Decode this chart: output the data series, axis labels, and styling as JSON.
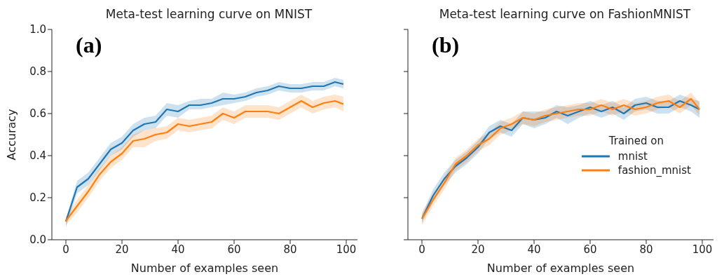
{
  "chart_data": [
    {
      "type": "line",
      "title": "Meta-test learning curve on MNIST",
      "xlabel": "Number of examples seen",
      "ylabel": "Accuracy",
      "annotations": [
        "(a)"
      ],
      "legend": false,
      "marker": "none",
      "line_style": "solid",
      "grid": false,
      "x": [
        0,
        4,
        8,
        12,
        16,
        20,
        24,
        28,
        32,
        36,
        40,
        44,
        48,
        52,
        56,
        60,
        64,
        68,
        72,
        76,
        80,
        84,
        88,
        92,
        96,
        99
      ],
      "xlim": [
        -5,
        104
      ],
      "xticks": [
        0,
        20,
        40,
        60,
        80,
        100
      ],
      "ylim": [
        0,
        1
      ],
      "yticks": [
        {
          "value": 0,
          "label": "0.0"
        },
        {
          "value": 0.2,
          "label": "0.2"
        },
        {
          "value": 0.4,
          "label": "0.4"
        },
        {
          "value": 0.6,
          "label": "0.6"
        },
        {
          "value": 0.8,
          "label": "0.8"
        },
        {
          "value": 1,
          "label": "1.0"
        }
      ],
      "series": [
        {
          "color": "#1f77b4",
          "values": [
            0.087,
            0.25,
            0.29,
            0.36,
            0.43,
            0.46,
            0.52,
            0.55,
            0.56,
            0.62,
            0.61,
            0.64,
            0.64,
            0.65,
            0.67,
            0.67,
            0.68,
            0.7,
            0.71,
            0.73,
            0.72,
            0.72,
            0.73,
            0.73,
            0.75,
            0.74
          ],
          "lower": [
            0.06,
            0.22,
            0.26,
            0.33,
            0.4,
            0.43,
            0.49,
            0.52,
            0.53,
            0.59,
            0.58,
            0.62,
            0.62,
            0.63,
            0.64,
            0.65,
            0.66,
            0.68,
            0.69,
            0.71,
            0.7,
            0.7,
            0.71,
            0.71,
            0.73,
            0.72
          ],
          "upper": [
            0.1,
            0.28,
            0.32,
            0.39,
            0.46,
            0.49,
            0.55,
            0.58,
            0.59,
            0.65,
            0.64,
            0.66,
            0.67,
            0.67,
            0.7,
            0.69,
            0.7,
            0.72,
            0.73,
            0.75,
            0.74,
            0.74,
            0.75,
            0.75,
            0.77,
            0.76
          ]
        },
        {
          "color": "#ff7f0e",
          "values": [
            0.09,
            0.16,
            0.23,
            0.31,
            0.37,
            0.41,
            0.47,
            0.48,
            0.5,
            0.51,
            0.55,
            0.54,
            0.55,
            0.56,
            0.6,
            0.58,
            0.61,
            0.61,
            0.61,
            0.6,
            0.63,
            0.66,
            0.63,
            0.65,
            0.66,
            0.645
          ],
          "lower": [
            0.07,
            0.13,
            0.2,
            0.28,
            0.34,
            0.38,
            0.44,
            0.44,
            0.47,
            0.48,
            0.52,
            0.51,
            0.52,
            0.53,
            0.57,
            0.55,
            0.58,
            0.58,
            0.58,
            0.57,
            0.6,
            0.63,
            0.6,
            0.62,
            0.63,
            0.61
          ],
          "upper": [
            0.11,
            0.19,
            0.26,
            0.34,
            0.4,
            0.44,
            0.5,
            0.52,
            0.53,
            0.54,
            0.58,
            0.57,
            0.58,
            0.59,
            0.63,
            0.61,
            0.64,
            0.64,
            0.64,
            0.63,
            0.66,
            0.69,
            0.66,
            0.68,
            0.69,
            0.68
          ]
        }
      ]
    },
    {
      "type": "line",
      "title": "Meta-test learning curve on FashionMNIST",
      "xlabel": "Number of examples seen",
      "annotations": [
        "(b)"
      ],
      "legend": "center right",
      "legend_title": "Trained on",
      "marker": "none",
      "line_style": "solid",
      "grid": false,
      "tick_labels": "x",
      "x": [
        0,
        4,
        8,
        12,
        16,
        20,
        24,
        28,
        32,
        36,
        40,
        44,
        48,
        52,
        56,
        60,
        64,
        68,
        72,
        76,
        80,
        84,
        88,
        92,
        96,
        99
      ],
      "xlim": [
        -5,
        104
      ],
      "xticks": [
        0,
        20,
        40,
        60,
        80,
        100
      ],
      "ylim": [
        0,
        1
      ],
      "yticks": [
        0,
        0.2,
        0.4,
        0.6,
        0.8,
        1
      ],
      "series": [
        {
          "name": "mnist",
          "color": "#1f77b4",
          "values": [
            0.1,
            0.21,
            0.29,
            0.35,
            0.39,
            0.44,
            0.51,
            0.54,
            0.52,
            0.58,
            0.57,
            0.58,
            0.61,
            0.59,
            0.61,
            0.63,
            0.61,
            0.63,
            0.6,
            0.64,
            0.65,
            0.63,
            0.63,
            0.66,
            0.64,
            0.62
          ],
          "lower": [
            0.08,
            0.18,
            0.26,
            0.32,
            0.36,
            0.41,
            0.48,
            0.51,
            0.49,
            0.55,
            0.53,
            0.55,
            0.58,
            0.55,
            0.58,
            0.6,
            0.58,
            0.6,
            0.57,
            0.61,
            0.62,
            0.6,
            0.6,
            0.63,
            0.61,
            0.58
          ],
          "upper": [
            0.12,
            0.24,
            0.32,
            0.38,
            0.42,
            0.47,
            0.54,
            0.57,
            0.55,
            0.61,
            0.61,
            0.61,
            0.64,
            0.63,
            0.64,
            0.66,
            0.64,
            0.66,
            0.63,
            0.67,
            0.68,
            0.66,
            0.66,
            0.69,
            0.67,
            0.66
          ]
        },
        {
          "name": "fashion_mnist",
          "color": "#ff7f0e",
          "values": [
            0.1,
            0.19,
            0.27,
            0.36,
            0.4,
            0.45,
            0.48,
            0.53,
            0.55,
            0.58,
            0.57,
            0.59,
            0.6,
            0.61,
            0.62,
            0.62,
            0.64,
            0.62,
            0.64,
            0.62,
            0.63,
            0.65,
            0.66,
            0.63,
            0.67,
            0.62
          ],
          "lower": [
            0.07,
            0.16,
            0.24,
            0.33,
            0.37,
            0.42,
            0.45,
            0.5,
            0.52,
            0.55,
            0.54,
            0.56,
            0.57,
            0.58,
            0.59,
            0.59,
            0.61,
            0.59,
            0.61,
            0.59,
            0.6,
            0.62,
            0.63,
            0.6,
            0.64,
            0.59
          ],
          "upper": [
            0.13,
            0.22,
            0.3,
            0.39,
            0.43,
            0.48,
            0.51,
            0.56,
            0.58,
            0.61,
            0.6,
            0.62,
            0.63,
            0.64,
            0.65,
            0.65,
            0.67,
            0.65,
            0.67,
            0.65,
            0.66,
            0.68,
            0.69,
            0.66,
            0.7,
            0.65
          ]
        }
      ]
    }
  ]
}
